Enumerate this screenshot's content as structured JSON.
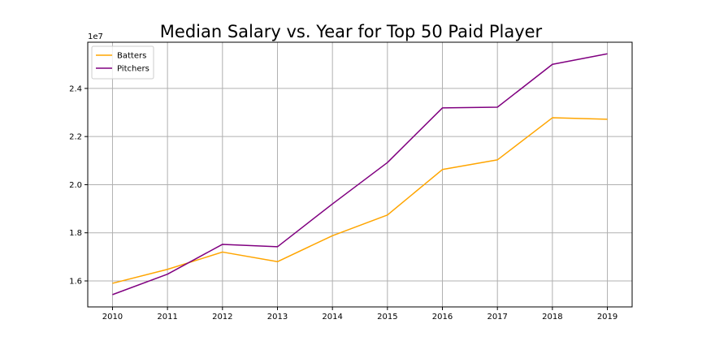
{
  "chart_data": {
    "type": "line",
    "title": "Median Salary vs. Year for Top 50 Paid Player",
    "xlabel": "",
    "ylabel": "",
    "x": [
      2010,
      2011,
      2012,
      2013,
      2014,
      2015,
      2016,
      2017,
      2018,
      2019
    ],
    "x_tick_labels": [
      "2010",
      "2011",
      "2012",
      "2013",
      "2014",
      "2015",
      "2016",
      "2017",
      "2018",
      "2019"
    ],
    "xlim": [
      2009.55,
      2019.45
    ],
    "y_scale_label": "1e7",
    "y_tick_values": [
      1.6,
      1.8,
      2.0,
      2.2,
      2.4
    ],
    "y_tick_labels": [
      "1.6",
      "1.8",
      "2.0",
      "2.2",
      "2.4"
    ],
    "ylim": [
      1.492,
      2.592
    ],
    "grid": true,
    "legend_position": "upper-left",
    "series": [
      {
        "name": "Batters",
        "color": "#FFA500",
        "values": [
          1.59,
          1.648,
          1.72,
          1.68,
          1.788,
          1.874,
          2.063,
          2.103,
          2.278,
          2.272
        ]
      },
      {
        "name": "Pitchers",
        "color": "#800080",
        "values": [
          1.543,
          1.628,
          1.752,
          1.742,
          1.92,
          2.092,
          2.319,
          2.322,
          2.5,
          2.544
        ]
      }
    ]
  }
}
